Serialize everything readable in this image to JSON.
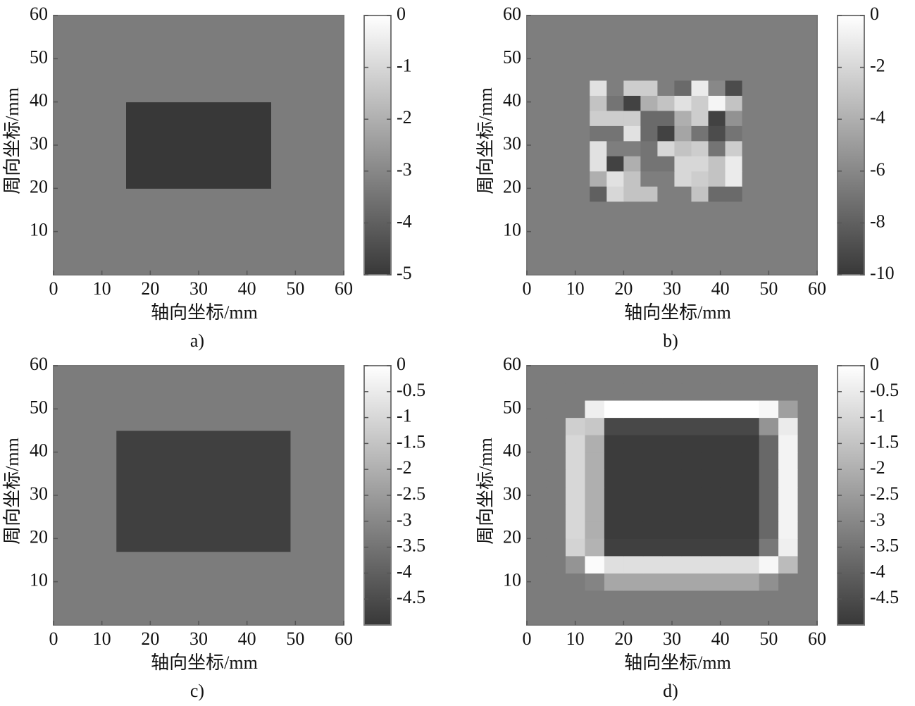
{
  "chart_data": [
    {
      "type": "heatmap",
      "caption": "a)",
      "xlabel": "轴向坐标/mm",
      "ylabel": "周向坐标/mm",
      "colormap": "gray",
      "xlim": [
        0,
        60
      ],
      "ylim": [
        0,
        60
      ],
      "xticks": [
        0,
        10,
        20,
        30,
        40,
        50,
        60
      ],
      "yticks": [
        10,
        20,
        30,
        40,
        50,
        60
      ],
      "clim": [
        -5,
        0
      ],
      "cticks": [
        0,
        -1,
        -2,
        -3,
        -4,
        -5
      ],
      "xbins": [
        0,
        15,
        45,
        60
      ],
      "ybins": [
        0,
        20,
        40,
        60
      ],
      "z": [
        [
          -3.3,
          -3.3,
          -3.3
        ],
        [
          -3.3,
          -5,
          -3.3
        ],
        [
          -3.3,
          -3.3,
          -3.3
        ]
      ]
    },
    {
      "type": "heatmap",
      "caption": "b)",
      "xlabel": "轴向坐标/mm",
      "ylabel": "周向坐标/mm",
      "colormap": "gray",
      "xlim": [
        0,
        60
      ],
      "ylim": [
        0,
        60
      ],
      "xticks": [
        0,
        10,
        20,
        30,
        40,
        50,
        60
      ],
      "yticks": [
        10,
        20,
        30,
        40,
        50,
        60
      ],
      "clim": [
        -10,
        0
      ],
      "cticks": [
        0,
        -2,
        -4,
        -6,
        -8,
        -10
      ],
      "xbins": [
        0,
        13,
        16.5,
        20,
        23.5,
        27,
        30.5,
        34,
        37.5,
        41,
        44.5,
        48,
        60
      ],
      "ybins": [
        0,
        17,
        20.5,
        24,
        27.5,
        31,
        34.5,
        38,
        41.5,
        45,
        60
      ],
      "z": [
        [
          -6.5,
          -6.5,
          -6.5,
          -6.5,
          -6.5,
          -6.5,
          -6.5,
          -6.5,
          -6.5,
          -6.5,
          -6.5,
          -6.5
        ],
        [
          -6.5,
          -8,
          -2,
          -3,
          -3,
          -6.5,
          -6.5,
          -3,
          -7.5,
          -7.5,
          -6.5,
          -6.5
        ],
        [
          -6.5,
          -4,
          -1.5,
          -3,
          -6.5,
          -6.5,
          -2,
          -2.5,
          -3,
          -1,
          -6.5,
          -6.5
        ],
        [
          -6.5,
          -1.5,
          -9.5,
          -4,
          -7,
          -7,
          -2,
          -2,
          -3,
          -1,
          -6.5,
          -6.5
        ],
        [
          -6.5,
          -1.5,
          -6.5,
          -6.5,
          -7,
          -2,
          -3,
          -2.5,
          -7,
          -2.5,
          -6.5,
          -6.5
        ],
        [
          -6.5,
          -7,
          -7,
          -1.5,
          -7.5,
          -9.5,
          -4.5,
          -7,
          -9,
          -7,
          -6.5,
          -6.5
        ],
        [
          -6.5,
          -2.5,
          -2.5,
          -2.5,
          -7.5,
          -7.5,
          -4,
          -2.5,
          -9.5,
          -5.5,
          -6.5,
          -6.5
        ],
        [
          -6.5,
          -3,
          -7,
          -9.5,
          -4,
          -3,
          -1.5,
          -2.5,
          -0.5,
          -3,
          -6.5,
          -6.5
        ],
        [
          -6.5,
          -1.5,
          -6.5,
          -2.5,
          -2.5,
          -6.5,
          -7.5,
          -1,
          -6,
          -9,
          -6.5,
          -6.5
        ],
        [
          -6.5,
          -6.5,
          -6.5,
          -6.5,
          -6.5,
          -6.5,
          -6.5,
          -6.5,
          -6.5,
          -6.5,
          -6.5,
          -6.5
        ]
      ]
    },
    {
      "type": "heatmap",
      "caption": "c)",
      "xlabel": "轴向坐标/mm",
      "ylabel": "周向坐标/mm",
      "colormap": "gray",
      "xlim": [
        0,
        60
      ],
      "ylim": [
        0,
        60
      ],
      "xticks": [
        0,
        10,
        20,
        30,
        40,
        50,
        60
      ],
      "yticks": [
        10,
        20,
        30,
        40,
        50,
        60
      ],
      "clim": [
        -5,
        0
      ],
      "cticks": [
        0,
        -0.5,
        -1,
        -1.5,
        -2,
        -2.5,
        -3,
        -3.5,
        -4,
        -4.5
      ],
      "xbins": [
        0,
        13,
        49,
        60
      ],
      "ybins": [
        0,
        17,
        45,
        60
      ],
      "z": [
        [
          -3.3,
          -3.3,
          -3.3
        ],
        [
          -3.3,
          -4.8,
          -3.3
        ],
        [
          -3.3,
          -3.3,
          -3.3
        ]
      ]
    },
    {
      "type": "heatmap",
      "caption": "d)",
      "xlabel": "轴向坐标/mm",
      "ylabel": "周向坐标/mm",
      "colormap": "gray",
      "xlim": [
        0,
        60
      ],
      "ylim": [
        0,
        60
      ],
      "xticks": [
        0,
        10,
        20,
        30,
        40,
        50,
        60
      ],
      "yticks": [
        10,
        20,
        30,
        40,
        50,
        60
      ],
      "clim": [
        -5,
        0
      ],
      "cticks": [
        0,
        -0.5,
        -1,
        -1.5,
        -2,
        -2.5,
        -3,
        -3.5,
        -4,
        -4.5
      ],
      "xbins": [
        0,
        4,
        8,
        12,
        16,
        20,
        24,
        28,
        32,
        36,
        40,
        44,
        48,
        52,
        56,
        60
      ],
      "ybins": [
        0,
        4,
        8,
        12,
        16,
        20,
        24,
        28,
        32,
        36,
        40,
        44,
        48,
        52,
        56,
        60
      ],
      "z": [
        [
          -3.3,
          -3.3,
          -3.3,
          -3.3,
          -3.3,
          -3.3,
          -3.3,
          -3.3,
          -3.3,
          -3.3,
          -3.3,
          -3.3,
          -3.3,
          -3.3,
          -3.3
        ],
        [
          -3.3,
          -3.3,
          -3.3,
          -3.3,
          -3.3,
          -3.3,
          -3.3,
          -3.3,
          -3.3,
          -3.3,
          -3.3,
          -3.3,
          -3.3,
          -3.3,
          -3.3
        ],
        [
          -3.3,
          -3.3,
          -3.3,
          -3.1,
          -2.2,
          -2.2,
          -2.2,
          -2.2,
          -2.2,
          -2.2,
          -2.2,
          -2.2,
          -2.8,
          -3.3,
          -3.3
        ],
        [
          -3.3,
          -3.3,
          -2.7,
          -0.1,
          -0.8,
          -0.8,
          -0.8,
          -0.8,
          -0.8,
          -0.8,
          -0.8,
          -0.8,
          -0.2,
          -1.7,
          -3.3
        ],
        [
          -3.3,
          -3.3,
          -1.1,
          -1.9,
          -4.8,
          -4.8,
          -4.8,
          -4.8,
          -4.8,
          -4.8,
          -4.8,
          -4.8,
          -3.4,
          -0.4,
          -3.3
        ],
        [
          -3.3,
          -3.3,
          -1,
          -2,
          -4.9,
          -4.9,
          -4.9,
          -4.9,
          -4.9,
          -4.9,
          -4.9,
          -4.9,
          -3.8,
          -0.3,
          -3.3
        ],
        [
          -3.3,
          -3.3,
          -1,
          -2,
          -4.9,
          -4.9,
          -4.9,
          -4.9,
          -4.9,
          -4.9,
          -4.9,
          -4.9,
          -3.8,
          -0.3,
          -3.3
        ],
        [
          -3.3,
          -3.3,
          -1,
          -2,
          -4.9,
          -4.9,
          -4.9,
          -4.9,
          -4.9,
          -4.9,
          -4.9,
          -4.9,
          -3.8,
          -0.3,
          -3.3
        ],
        [
          -3.3,
          -3.3,
          -1,
          -2,
          -4.9,
          -4.9,
          -4.9,
          -4.9,
          -4.9,
          -4.9,
          -4.9,
          -4.9,
          -3.8,
          -0.3,
          -3.3
        ],
        [
          -3.3,
          -3.3,
          -1,
          -2,
          -4.9,
          -4.9,
          -4.9,
          -4.9,
          -4.9,
          -4.9,
          -4.9,
          -4.9,
          -3.8,
          -0.3,
          -3.3
        ],
        [
          -3.3,
          -3.3,
          -1,
          -2,
          -4.9,
          -4.9,
          -4.9,
          -4.9,
          -4.9,
          -4.9,
          -4.9,
          -4.9,
          -3.8,
          -0.3,
          -3.3
        ],
        [
          -3.3,
          -3.3,
          -1.2,
          -1.4,
          -4.6,
          -4.6,
          -4.6,
          -4.6,
          -4.6,
          -4.6,
          -4.6,
          -4.6,
          -2.7,
          -0.5,
          -3.3
        ],
        [
          -3.3,
          -3.3,
          -3.3,
          -0.4,
          0,
          0,
          0,
          0,
          0,
          0,
          0,
          0,
          -0.2,
          -2.4,
          -3.3
        ],
        [
          -3.3,
          -3.3,
          -3.3,
          -3.3,
          -3.3,
          -3.3,
          -3.3,
          -3.3,
          -3.3,
          -3.3,
          -3.3,
          -3.3,
          -3.3,
          -3.3,
          -3.3
        ],
        [
          -3.3,
          -3.3,
          -3.3,
          -3.3,
          -3.3,
          -3.3,
          -3.3,
          -3.3,
          -3.3,
          -3.3,
          -3.3,
          -3.3,
          -3.3,
          -3.3,
          -3.3
        ]
      ]
    }
  ]
}
